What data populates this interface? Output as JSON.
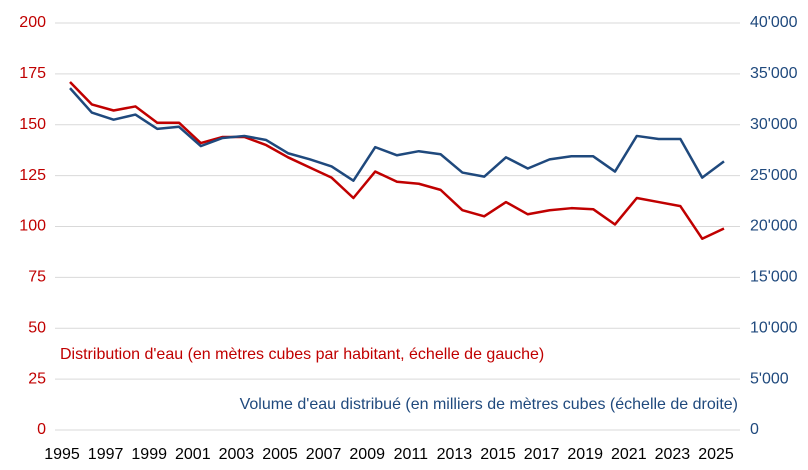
{
  "chart_data": {
    "type": "line",
    "x": [
      1995,
      1996,
      1997,
      1998,
      1999,
      2000,
      2001,
      2002,
      2003,
      2004,
      2005,
      2006,
      2007,
      2008,
      2009,
      2010,
      2011,
      2012,
      2013,
      2014,
      2015,
      2016,
      2017,
      2018,
      2019,
      2020,
      2021,
      2022,
      2023,
      2024,
      2025
    ],
    "xlim": [
      1995,
      2025
    ],
    "xticks": [
      1995,
      1997,
      1999,
      2001,
      2003,
      2005,
      2007,
      2009,
      2011,
      2013,
      2015,
      2017,
      2019,
      2021,
      2023,
      2025
    ],
    "ylim": [
      0,
      200
    ],
    "yticks": [
      0,
      25,
      50,
      75,
      100,
      125,
      150,
      175,
      200
    ],
    "y2lim": [
      0,
      40000
    ],
    "y2ticks": [
      {
        "value": 0,
        "label": "0"
      },
      {
        "value": 5000,
        "label": "5'000"
      },
      {
        "value": 10000,
        "label": "10'000"
      },
      {
        "value": 15000,
        "label": "15'000"
      },
      {
        "value": 20000,
        "label": "20'000"
      },
      {
        "value": 25000,
        "label": "25'000"
      },
      {
        "value": 30000,
        "label": "30'000"
      },
      {
        "value": 35000,
        "label": "35'000"
      },
      {
        "value": 40000,
        "label": "40'000"
      }
    ],
    "grid": true,
    "series": [
      {
        "name": "Distribution d'eau (en mètres cubes par habitant, échelle de gauche)",
        "color": "#c00000",
        "values": [
          171,
          160,
          157,
          159,
          151,
          151,
          141,
          144,
          144,
          140,
          134,
          129,
          124,
          114,
          127,
          122,
          121,
          118,
          108,
          105,
          112,
          106,
          108,
          109,
          108.5,
          101,
          114,
          112,
          110,
          94,
          99
        ]
      },
      {
        "name": "Volume d'eau distribué (en milliers de mètres cubes (échelle de droite)",
        "color": "#1f497d",
        "axis": "y2",
        "values": [
          33600,
          31200,
          30500,
          31000,
          29600,
          29800,
          27900,
          28700,
          28900,
          28500,
          27200,
          26600,
          25900,
          24500,
          27800,
          27000,
          27400,
          27100,
          25300,
          24900,
          26800,
          25700,
          26600,
          26900,
          26900,
          25400,
          28900,
          28600,
          28600,
          24800,
          26400
        ]
      }
    ]
  }
}
